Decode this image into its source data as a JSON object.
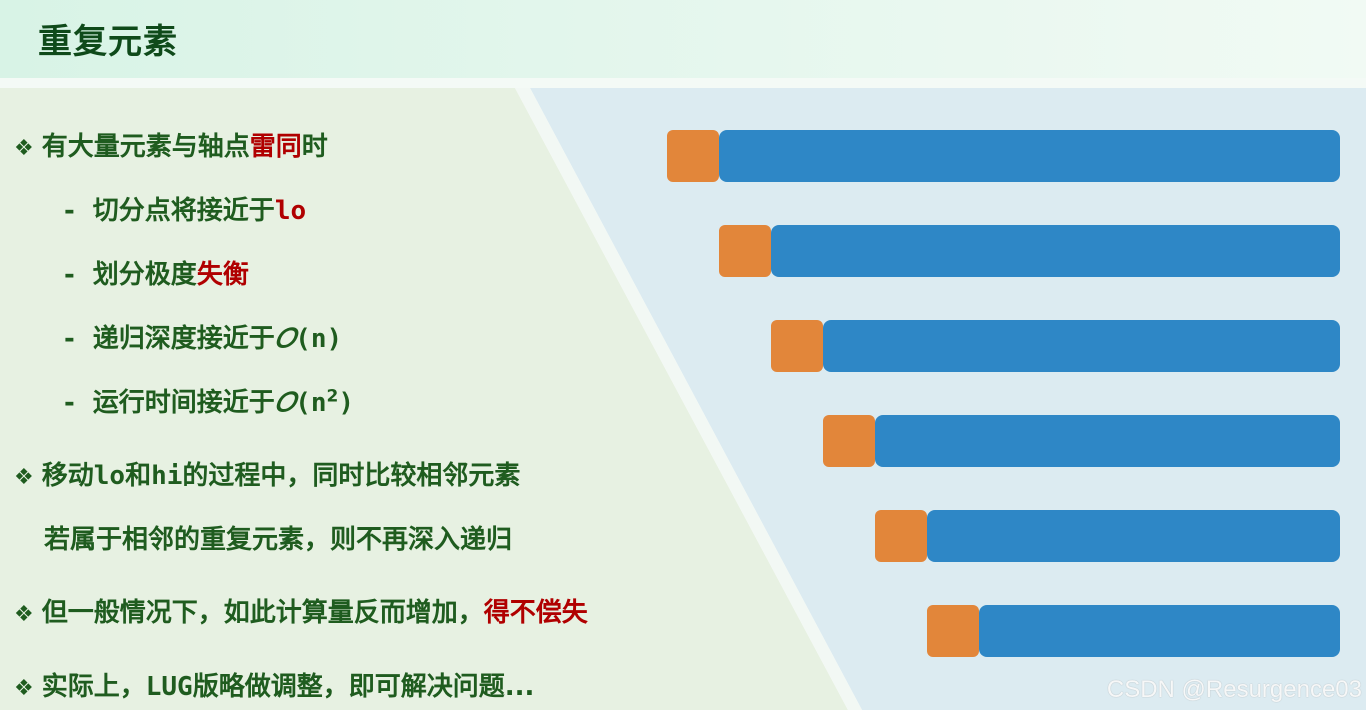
{
  "title": "重复元素",
  "bullets": [
    {
      "pre": "有大量元素与轴点",
      "hl": "雷同",
      "post": "时"
    },
    {
      "pre": "切分点将接近于",
      "code": "lo"
    },
    {
      "pre": "划分极度",
      "hl": "失衡"
    },
    {
      "pre": "递归深度接近于",
      "o": "𝑂",
      "arg": "(n)"
    },
    {
      "pre": "运行时间接近于",
      "o": "𝑂",
      "arg": "(n",
      "sup": "2",
      "close": ")"
    },
    {
      "pre": "移动",
      "lo": "lo",
      "mid": "和",
      "hi": "hi",
      "post": "的过程中，同时比较相邻元素"
    },
    {
      "text": "若属于相邻的重复元素，则不再深入递归"
    },
    {
      "pre": "但一般情况下，如此计算量反而增加，",
      "hl": "得不偿失"
    },
    {
      "pre": "实际上，",
      "code": "LUG",
      "post": "版略做调整，即可解决问题..."
    }
  ],
  "bullet_symbol": "❖",
  "dash_symbol": "-",
  "bars": {
    "orange": "#e2863a",
    "blue": "#2e87c6",
    "count": 6
  },
  "colors": {
    "text": "#1f5c1f",
    "highlight": "#b00000",
    "left_bg": "#e7f1e2",
    "right_bg": "#dcebf1"
  },
  "watermark": "CSDN @Resurgence03"
}
